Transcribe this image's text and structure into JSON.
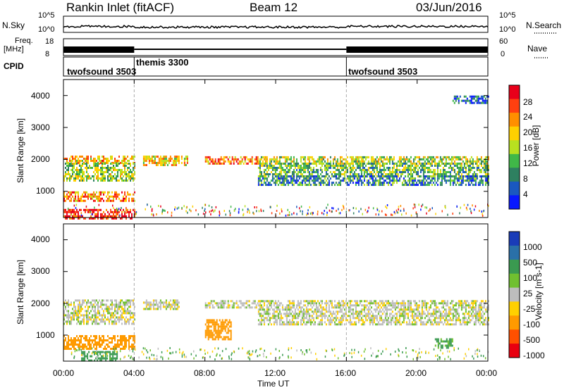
{
  "header": {
    "station": "Rankin Inlet (fitACF)",
    "beam": "Beam 12",
    "date": "03/Jun/2016"
  },
  "nsky_panel": {
    "left_label": "N.Sky",
    "left_ticks": [
      "10^5",
      "10^0"
    ],
    "right_ticks": [
      "10^5",
      "10^0"
    ],
    "right_label": "N.Search"
  },
  "freq_panel": {
    "left_label_1": "Freq.",
    "left_label_2": "[MHz]",
    "left_ticks": [
      "18",
      "8"
    ],
    "right_ticks": [
      "60",
      "0"
    ],
    "right_label": "Nave"
  },
  "cpid_panel": {
    "label": "CPID",
    "segments": [
      {
        "name": "twofsound 3503",
        "start_h": 0,
        "end_h": 4
      },
      {
        "name": "themis 3300",
        "start_h": 4,
        "end_h": 16
      },
      {
        "name": "twofsound 3503",
        "start_h": 16,
        "end_h": 24
      }
    ]
  },
  "x_axis": {
    "ticks": [
      "00:00",
      "04:00",
      "08:00",
      "12:00",
      "16:00",
      "20:00",
      "00:00"
    ],
    "label": "Time UT"
  },
  "power_colorbar": {
    "label": "Power [dB]",
    "ticks": [
      "28",
      "24",
      "20",
      "16",
      "12",
      "8",
      "4"
    ],
    "colors": [
      "#e8001a",
      "#ff4010",
      "#ff8f00",
      "#ffd000",
      "#b8e020",
      "#40b848",
      "#2e8060",
      "#1a58c0",
      "#0818ff"
    ]
  },
  "velocity_colorbar": {
    "label": "Velocity [m s-1]",
    "ticks": [
      "1000",
      "500",
      "100",
      "25",
      "-25",
      "-100",
      "-500",
      "-1000"
    ],
    "colors": [
      "#1a3cb8",
      "#2a70a8",
      "#3a9a50",
      "#70c030",
      "#bdbdbd",
      "#ffd000",
      "#ff9a00",
      "#ff5000",
      "#e80010"
    ]
  },
  "chart_data": [
    {
      "type": "heatmap",
      "title": "",
      "xlabel": "Time UT",
      "ylabel": "Slant Range [km]",
      "xlim_hours": [
        0,
        24
      ],
      "ylim_km": [
        180,
        4500
      ],
      "yticks": [
        1000,
        2000,
        3000,
        4000
      ],
      "colorbar": "Power [dB]",
      "value_range": [
        0,
        30
      ],
      "regions": [
        {
          "t": [
            0,
            4
          ],
          "range_km": [
            1900,
            2120
          ],
          "value": 20
        },
        {
          "t": [
            0,
            4
          ],
          "range_km": [
            1350,
            1900
          ],
          "value": 14
        },
        {
          "t": [
            0,
            4
          ],
          "range_km": [
            700,
            1000
          ],
          "value": 22
        },
        {
          "t": [
            0,
            4
          ],
          "range_km": [
            180,
            450
          ],
          "value": 28
        },
        {
          "t": [
            4.5,
            7
          ],
          "range_km": [
            1800,
            2120
          ],
          "value": 18
        },
        {
          "t": [
            8,
            11
          ],
          "range_km": [
            1850,
            2100
          ],
          "value": 22
        },
        {
          "t": [
            11,
            24
          ],
          "range_km": [
            1900,
            2100
          ],
          "value": 15
        },
        {
          "t": [
            11,
            24
          ],
          "range_km": [
            1500,
            1900
          ],
          "value": 12
        },
        {
          "t": [
            11,
            24
          ],
          "range_km": [
            1200,
            1500
          ],
          "value": 8
        },
        {
          "t": [
            22,
            24
          ],
          "range_km": [
            3800,
            4000
          ],
          "value": 6
        }
      ]
    },
    {
      "type": "heatmap",
      "title": "",
      "xlabel": "Time UT",
      "ylabel": "Slant Range [km]",
      "xlim_hours": [
        0,
        24
      ],
      "ylim_km": [
        180,
        4500
      ],
      "yticks": [
        1000,
        2000,
        3000,
        4000
      ],
      "colorbar": "Velocity [m s-1]",
      "value_range": [
        -1000,
        1000
      ],
      "regions": [
        {
          "t": [
            0,
            4
          ],
          "range_km": [
            1350,
            2120
          ],
          "value": 0
        },
        {
          "t": [
            0,
            4
          ],
          "range_km": [
            600,
            1000
          ],
          "value": -150
        },
        {
          "t": [
            1,
            3
          ],
          "range_km": [
            180,
            500
          ],
          "value": 150
        },
        {
          "t": [
            4.5,
            6.5
          ],
          "range_km": [
            1800,
            2120
          ],
          "value": 0
        },
        {
          "t": [
            8,
            11
          ],
          "range_km": [
            1850,
            2100
          ],
          "value": 0
        },
        {
          "t": [
            8,
            9.5
          ],
          "range_km": [
            900,
            1500
          ],
          "value": -300
        },
        {
          "t": [
            11,
            24
          ],
          "range_km": [
            1350,
            2100
          ],
          "value": 0
        },
        {
          "t": [
            21,
            22
          ],
          "range_km": [
            600,
            900
          ],
          "value": 120
        }
      ]
    }
  ]
}
